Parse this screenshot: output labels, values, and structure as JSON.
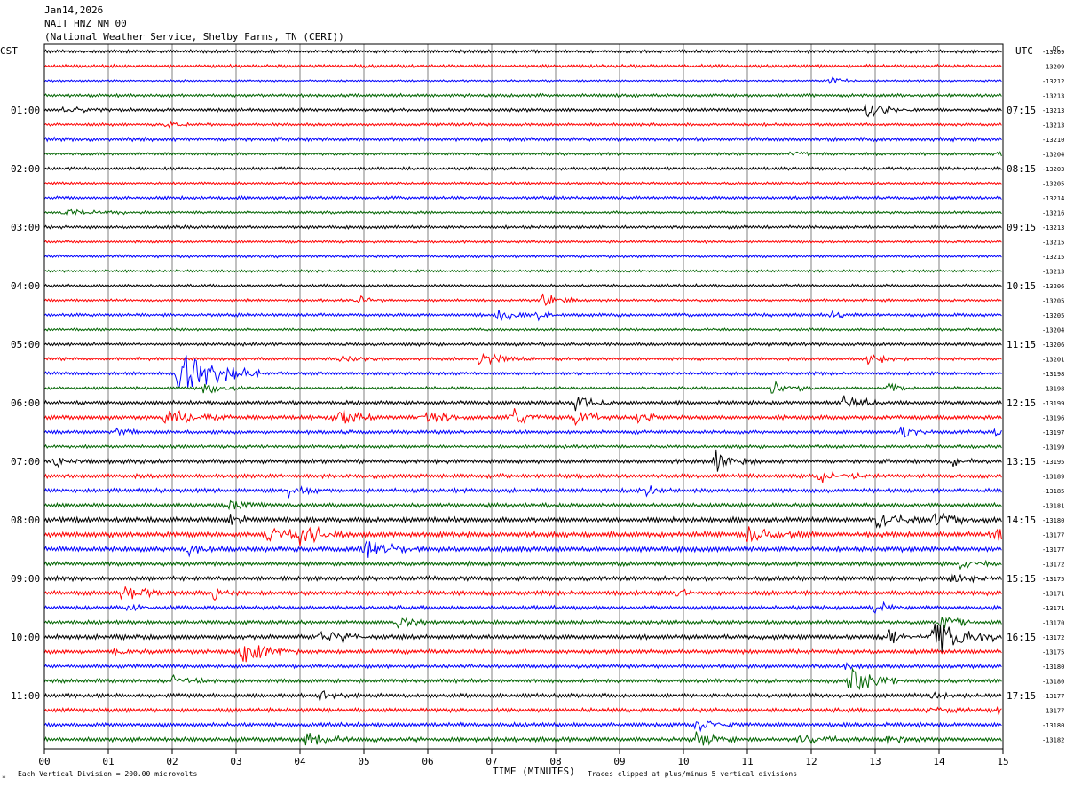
{
  "header": {
    "date": "Jan14,2026",
    "station": "NAIT HNZ NM 00",
    "source": "(National Weather Service, Shelby Farms, TN (CERI))"
  },
  "chart_data": {
    "type": "line",
    "left_zone_label": "CST",
    "right_zone_label": "UTC",
    "right_unit_label": "DC",
    "xlabel": "TIME (MINUTES)",
    "xlim": [
      0,
      15
    ],
    "x_ticks": [
      "00",
      "01",
      "02",
      "03",
      "04",
      "05",
      "06",
      "07",
      "08",
      "09",
      "10",
      "11",
      "12",
      "13",
      "14",
      "15"
    ],
    "trace_colors": [
      "#000000",
      "#ff0000",
      "#0000ff",
      "#006400"
    ],
    "left_hour_labels": [
      {
        "row": 4,
        "label": "01:00"
      },
      {
        "row": 8,
        "label": "02:00"
      },
      {
        "row": 12,
        "label": "03:00"
      },
      {
        "row": 16,
        "label": "04:00"
      },
      {
        "row": 20,
        "label": "05:00"
      },
      {
        "row": 24,
        "label": "06:00"
      },
      {
        "row": 28,
        "label": "07:00"
      },
      {
        "row": 32,
        "label": "08:00"
      },
      {
        "row": 36,
        "label": "09:00"
      },
      {
        "row": 40,
        "label": "10:00"
      },
      {
        "row": 44,
        "label": "11:00"
      }
    ],
    "right_hour_labels": [
      {
        "row": 4,
        "label": "07:15"
      },
      {
        "row": 8,
        "label": "08:15"
      },
      {
        "row": 12,
        "label": "09:15"
      },
      {
        "row": 16,
        "label": "10:15"
      },
      {
        "row": 20,
        "label": "11:15"
      },
      {
        "row": 24,
        "label": "12:15"
      },
      {
        "row": 28,
        "label": "13:15"
      },
      {
        "row": 32,
        "label": "14:15"
      },
      {
        "row": 36,
        "label": "15:15"
      },
      {
        "row": 40,
        "label": "16:15"
      },
      {
        "row": 44,
        "label": "17:15"
      }
    ],
    "dc_offsets": [
      "-13209",
      "-13209",
      "-13212",
      "-13213",
      "-13213",
      "-13213",
      "-13210",
      "-13204",
      "-13203",
      "-13205",
      "-13214",
      "-13216",
      "-13213",
      "-13215",
      "-13215",
      "-13213",
      "-13206",
      "-13205",
      "-13205",
      "-13204",
      "-13206",
      "-13201",
      "-13198",
      "-13198",
      "-13199",
      "-13196",
      "-13197",
      "-13199",
      "-13195",
      "-13189",
      "-13185",
      "-13181",
      "-13180",
      "-13177",
      "-13177",
      "-13172",
      "-13175",
      "-13171",
      "-13171",
      "-13170",
      "-13172",
      "-13175",
      "-13180",
      "-13180",
      "-13177",
      "-13177",
      "-13180",
      "-13182"
    ],
    "trace_count": 48,
    "noise_level": [
      1,
      1,
      0.6,
      1,
      1,
      0.9,
      1.2,
      0.9,
      1,
      0.8,
      1,
      0.8,
      1,
      0.8,
      0.9,
      0.8,
      0.9,
      0.8,
      1,
      0.8,
      1,
      1,
      1,
      0.9,
      1.2,
      1.3,
      1.1,
      1,
      1.3,
      1.3,
      1.3,
      1.3,
      1.6,
      1.7,
      1.6,
      1.3,
      1.4,
      1.4,
      1.2,
      1.2,
      1.4,
      1.3,
      1.2,
      1.2,
      1.3,
      1.3,
      1.3,
      1.3
    ],
    "events": [
      {
        "trace": 2,
        "minute": 12.3,
        "amp": 6,
        "dur": 0.2
      },
      {
        "trace": 4,
        "minute": 0.3,
        "amp": 3,
        "dur": 0.5
      },
      {
        "trace": 4,
        "minute": 12.85,
        "amp": 10,
        "dur": 0.35
      },
      {
        "trace": 5,
        "minute": 1.9,
        "amp": 5,
        "dur": 0.2
      },
      {
        "trace": 7,
        "minute": 11.7,
        "amp": 5,
        "dur": 0.2
      },
      {
        "trace": 7,
        "minute": 14.9,
        "amp": 4,
        "dur": 0.2
      },
      {
        "trace": 11,
        "minute": 0.3,
        "amp": 4,
        "dur": 0.6
      },
      {
        "trace": 17,
        "minute": 4.9,
        "amp": 6,
        "dur": 0.2
      },
      {
        "trace": 17,
        "minute": 7.8,
        "amp": 8,
        "dur": 0.25
      },
      {
        "trace": 18,
        "minute": 7.1,
        "amp": 8,
        "dur": 0.25
      },
      {
        "trace": 18,
        "minute": 7.7,
        "amp": 5,
        "dur": 0.2
      },
      {
        "trace": 18,
        "minute": 12.3,
        "amp": 5,
        "dur": 0.25
      },
      {
        "trace": 21,
        "minute": 4.6,
        "amp": 5,
        "dur": 0.3
      },
      {
        "trace": 21,
        "minute": 6.8,
        "amp": 7,
        "dur": 0.4
      },
      {
        "trace": 21,
        "minute": 12.9,
        "amp": 7,
        "dur": 0.3
      },
      {
        "trace": 22,
        "minute": 2.1,
        "amp": 26,
        "dur": 0.6
      },
      {
        "trace": 23,
        "minute": 2.5,
        "amp": 7,
        "dur": 0.3
      },
      {
        "trace": 23,
        "minute": 11.4,
        "amp": 8,
        "dur": 0.3
      },
      {
        "trace": 23,
        "minute": 13.2,
        "amp": 5,
        "dur": 0.2
      },
      {
        "trace": 24,
        "minute": 8.3,
        "amp": 9,
        "dur": 0.3
      },
      {
        "trace": 24,
        "minute": 12.5,
        "amp": 8,
        "dur": 0.3
      },
      {
        "trace": 25,
        "minute": 1.9,
        "amp": 10,
        "dur": 0.5
      },
      {
        "trace": 25,
        "minute": 4.5,
        "amp": 12,
        "dur": 0.3
      },
      {
        "trace": 25,
        "minute": 5.9,
        "amp": 9,
        "dur": 0.3
      },
      {
        "trace": 25,
        "minute": 7.3,
        "amp": 13,
        "dur": 0.25
      },
      {
        "trace": 25,
        "minute": 8.3,
        "amp": 9,
        "dur": 0.3
      },
      {
        "trace": 25,
        "minute": 9.3,
        "amp": 7,
        "dur": 0.2
      },
      {
        "trace": 26,
        "minute": 1.15,
        "amp": 7,
        "dur": 0.15
      },
      {
        "trace": 26,
        "minute": 13.4,
        "amp": 8,
        "dur": 0.25
      },
      {
        "trace": 26,
        "minute": 14.9,
        "amp": 5,
        "dur": 0.2
      },
      {
        "trace": 28,
        "minute": 0.15,
        "amp": 7,
        "dur": 0.3
      },
      {
        "trace": 28,
        "minute": 10.5,
        "amp": 12,
        "dur": 0.3
      },
      {
        "trace": 28,
        "minute": 14.2,
        "amp": 6,
        "dur": 0.3
      },
      {
        "trace": 29,
        "minute": 12.1,
        "amp": 9,
        "dur": 0.4
      },
      {
        "trace": 30,
        "minute": 3.8,
        "amp": 8,
        "dur": 0.3
      },
      {
        "trace": 30,
        "minute": 9.35,
        "amp": 8,
        "dur": 0.3
      },
      {
        "trace": 31,
        "minute": 2.9,
        "amp": 6,
        "dur": 0.3
      },
      {
        "trace": 32,
        "minute": 2.9,
        "amp": 6,
        "dur": 0.2
      },
      {
        "trace": 32,
        "minute": 13.0,
        "amp": 9,
        "dur": 0.4
      },
      {
        "trace": 32,
        "minute": 13.9,
        "amp": 9,
        "dur": 0.4
      },
      {
        "trace": 33,
        "minute": 3.5,
        "amp": 11,
        "dur": 0.4
      },
      {
        "trace": 33,
        "minute": 4.0,
        "amp": 11,
        "dur": 0.4
      },
      {
        "trace": 33,
        "minute": 11.0,
        "amp": 11,
        "dur": 0.4
      },
      {
        "trace": 33,
        "minute": 14.8,
        "amp": 9,
        "dur": 0.3
      },
      {
        "trace": 34,
        "minute": 5.0,
        "amp": 10,
        "dur": 0.4
      },
      {
        "trace": 34,
        "minute": 2.25,
        "amp": 7,
        "dur": 0.2
      },
      {
        "trace": 35,
        "minute": 14.3,
        "amp": 8,
        "dur": 0.3
      },
      {
        "trace": 36,
        "minute": 14.2,
        "amp": 8,
        "dur": 0.3
      },
      {
        "trace": 37,
        "minute": 1.2,
        "amp": 9,
        "dur": 0.4
      },
      {
        "trace": 37,
        "minute": 2.65,
        "amp": 9,
        "dur": 0.2
      },
      {
        "trace": 37,
        "minute": 9.9,
        "amp": 7,
        "dur": 0.2
      },
      {
        "trace": 38,
        "minute": 1.3,
        "amp": 6,
        "dur": 0.2
      },
      {
        "trace": 38,
        "minute": 13.0,
        "amp": 7,
        "dur": 0.2
      },
      {
        "trace": 39,
        "minute": 5.5,
        "amp": 8,
        "dur": 0.25
      },
      {
        "trace": 39,
        "minute": 14.0,
        "amp": 9,
        "dur": 0.25
      },
      {
        "trace": 40,
        "minute": 4.3,
        "amp": 9,
        "dur": 0.35
      },
      {
        "trace": 40,
        "minute": 13.2,
        "amp": 7,
        "dur": 0.3
      },
      {
        "trace": 40,
        "minute": 13.9,
        "amp": 20,
        "dur": 0.5
      },
      {
        "trace": 41,
        "minute": 3.1,
        "amp": 14,
        "dur": 0.4
      },
      {
        "trace": 41,
        "minute": 1.1,
        "amp": 5,
        "dur": 0.2
      },
      {
        "trace": 42,
        "minute": 12.5,
        "amp": 5,
        "dur": 0.2
      },
      {
        "trace": 43,
        "minute": 12.6,
        "amp": 14,
        "dur": 0.4
      },
      {
        "trace": 43,
        "minute": 2.0,
        "amp": 6,
        "dur": 0.3
      },
      {
        "trace": 44,
        "minute": 4.3,
        "amp": 7,
        "dur": 0.2
      },
      {
        "trace": 44,
        "minute": 13.9,
        "amp": 6,
        "dur": 0.2
      },
      {
        "trace": 45,
        "minute": 13.8,
        "amp": 5,
        "dur": 0.3
      },
      {
        "trace": 45,
        "minute": 14.9,
        "amp": 5,
        "dur": 0.2
      },
      {
        "trace": 46,
        "minute": 10.2,
        "amp": 8,
        "dur": 0.3
      },
      {
        "trace": 47,
        "minute": 4.1,
        "amp": 9,
        "dur": 0.3
      },
      {
        "trace": 47,
        "minute": 10.2,
        "amp": 9,
        "dur": 0.3
      },
      {
        "trace": 47,
        "minute": 11.8,
        "amp": 6,
        "dur": 0.4
      },
      {
        "trace": 47,
        "minute": 13.2,
        "amp": 5,
        "dur": 0.3
      }
    ]
  },
  "footer": {
    "division_note": "Each Vertical Division =  200.00 microvolts",
    "clip_note": "Traces clipped at plus/minus 5 vertical divisions",
    "corner_mark": "*"
  }
}
